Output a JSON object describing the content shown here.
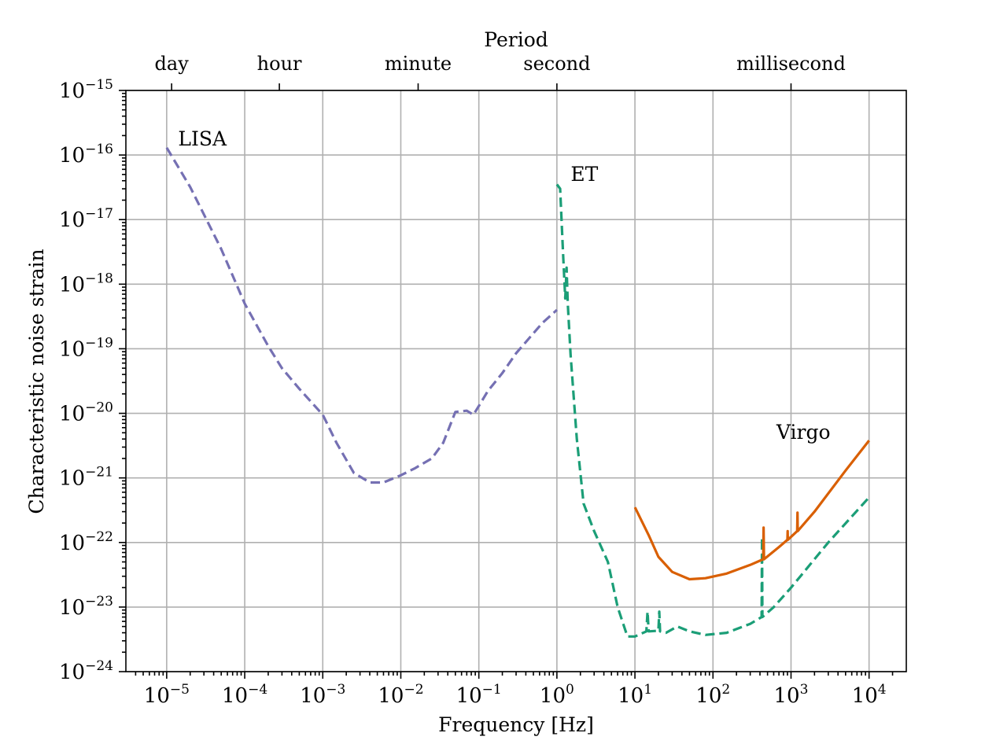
{
  "chart_data": {
    "type": "line",
    "xlabel": "Frequency [Hz]",
    "ylabel": "Characteristic noise strain",
    "x_scale": "log",
    "y_scale": "log",
    "xlim": [
      3e-06,
      30000
    ],
    "ylim": [
      1e-24,
      1e-15
    ],
    "grid": true,
    "x_ticks": [
      {
        "value": 1e-05,
        "base": "10",
        "exp": "−5"
      },
      {
        "value": 0.0001,
        "base": "10",
        "exp": "−4"
      },
      {
        "value": 0.001,
        "base": "10",
        "exp": "−3"
      },
      {
        "value": 0.01,
        "base": "10",
        "exp": "−2"
      },
      {
        "value": 0.1,
        "base": "10",
        "exp": "−1"
      },
      {
        "value": 1,
        "base": "10",
        "exp": "0"
      },
      {
        "value": 10,
        "base": "10",
        "exp": "1"
      },
      {
        "value": 100,
        "base": "10",
        "exp": "2"
      },
      {
        "value": 1000,
        "base": "10",
        "exp": "3"
      },
      {
        "value": 10000,
        "base": "10",
        "exp": "4"
      }
    ],
    "y_ticks": [
      {
        "value": 1e-15,
        "base": "10",
        "exp": "−15"
      },
      {
        "value": 1e-16,
        "base": "10",
        "exp": "−16"
      },
      {
        "value": 1e-17,
        "base": "10",
        "exp": "−17"
      },
      {
        "value": 1e-18,
        "base": "10",
        "exp": "−18"
      },
      {
        "value": 1e-19,
        "base": "10",
        "exp": "−19"
      },
      {
        "value": 1e-20,
        "base": "10",
        "exp": "−20"
      },
      {
        "value": 1e-21,
        "base": "10",
        "exp": "−21"
      },
      {
        "value": 1e-22,
        "base": "10",
        "exp": "−22"
      },
      {
        "value": 1e-23,
        "base": "10",
        "exp": "−23"
      },
      {
        "value": 1e-24,
        "base": "10",
        "exp": "−24"
      }
    ],
    "top_axis": {
      "title": "Period",
      "ticks": [
        {
          "label": "day",
          "frequency": 1.157e-05
        },
        {
          "label": "hour",
          "frequency": 0.0002778
        },
        {
          "label": "minute",
          "frequency": 0.01667
        },
        {
          "label": "second",
          "frequency": 1
        },
        {
          "label": "millisecond",
          "frequency": 1000
        }
      ]
    },
    "series": [
      {
        "name": "LISA",
        "color": "#7570b3",
        "style": "dashed",
        "label_at": {
          "x": 1.4e-05,
          "y": 1.4e-16
        },
        "points": [
          [
            1e-05,
            1.3e-16
          ],
          [
            2e-05,
            3.2e-17
          ],
          [
            5e-05,
            3.5e-18
          ],
          [
            0.0001,
            5e-19
          ],
          [
            0.0002,
            1.1e-19
          ],
          [
            0.0003,
            5e-20
          ],
          [
            0.0005,
            2.4e-20
          ],
          [
            0.001,
            9.5e-21
          ],
          [
            0.0015,
            3.5e-21
          ],
          [
            0.0025,
            1.2e-21
          ],
          [
            0.004,
            8.5e-22
          ],
          [
            0.006,
            8.5e-22
          ],
          [
            0.01,
            1.1e-21
          ],
          [
            0.015,
            1.4e-21
          ],
          [
            0.025,
            2e-21
          ],
          [
            0.035,
            3.5e-21
          ],
          [
            0.05,
            1.05e-20
          ],
          [
            0.07,
            1.1e-20
          ],
          [
            0.085,
            9.5e-21
          ],
          [
            0.1,
            1.3e-20
          ],
          [
            0.13,
            2.2e-20
          ],
          [
            0.2,
            4.2e-20
          ],
          [
            0.3,
            8.5e-20
          ],
          [
            0.45,
            1.5e-19
          ],
          [
            0.65,
            2.5e-19
          ],
          [
            1.0,
            4e-19
          ]
        ]
      },
      {
        "name": "ET",
        "color": "#1b9e77",
        "style": "dashed",
        "label_at": {
          "x": 1.5,
          "y": 4e-17
        },
        "points": [
          [
            1.0,
            3.5e-17
          ],
          [
            1.1,
            3e-17
          ],
          [
            1.2,
            3e-18
          ],
          [
            1.28,
            6e-19
          ],
          [
            1.33,
            1.8e-18
          ],
          [
            1.38,
            5e-19
          ],
          [
            1.5,
            8e-20
          ],
          [
            1.8,
            4e-21
          ],
          [
            2.2,
            4e-22
          ],
          [
            3.0,
            1.5e-22
          ],
          [
            4.5,
            5e-23
          ],
          [
            6.0,
            1e-23
          ],
          [
            8.0,
            3.5e-24
          ],
          [
            10,
            3.5e-24
          ],
          [
            14,
            4.2e-24
          ],
          [
            14.5,
            8.5e-24
          ],
          [
            15,
            4.2e-24
          ],
          [
            20,
            4.3e-24
          ],
          [
            20.5,
            8.5e-24
          ],
          [
            21,
            4.2e-24
          ],
          [
            25,
            4e-24
          ],
          [
            35,
            5e-24
          ],
          [
            50,
            4.2e-24
          ],
          [
            80,
            3.7e-24
          ],
          [
            150,
            4e-24
          ],
          [
            300,
            5.5e-24
          ],
          [
            420,
            7e-24
          ],
          [
            425,
            1.2e-22
          ],
          [
            430,
            7e-24
          ],
          [
            600,
            1e-23
          ],
          [
            1000,
            2e-23
          ],
          [
            3000,
            1e-22
          ],
          [
            10000,
            5e-22
          ]
        ]
      },
      {
        "name": "Virgo",
        "color": "#d95f02",
        "style": "solid",
        "label_at": {
          "x": 650,
          "y": 4e-21
        },
        "points": [
          [
            10,
            3.5e-22
          ],
          [
            15,
            1.3e-22
          ],
          [
            20,
            6e-23
          ],
          [
            30,
            3.5e-23
          ],
          [
            50,
            2.7e-23
          ],
          [
            80,
            2.8e-23
          ],
          [
            150,
            3.3e-23
          ],
          [
            300,
            4.5e-23
          ],
          [
            440,
            5.5e-23
          ],
          [
            445,
            1.7e-22
          ],
          [
            450,
            5.5e-23
          ],
          [
            700,
            8.5e-23
          ],
          [
            900,
            1.1e-22
          ],
          [
            905,
            1.5e-22
          ],
          [
            910,
            1.1e-22
          ],
          [
            1200,
            1.5e-22
          ],
          [
            1210,
            2.9e-22
          ],
          [
            1220,
            1.5e-22
          ],
          [
            2000,
            3e-22
          ],
          [
            5000,
            1.3e-21
          ],
          [
            10000,
            3.8e-21
          ]
        ]
      }
    ]
  }
}
